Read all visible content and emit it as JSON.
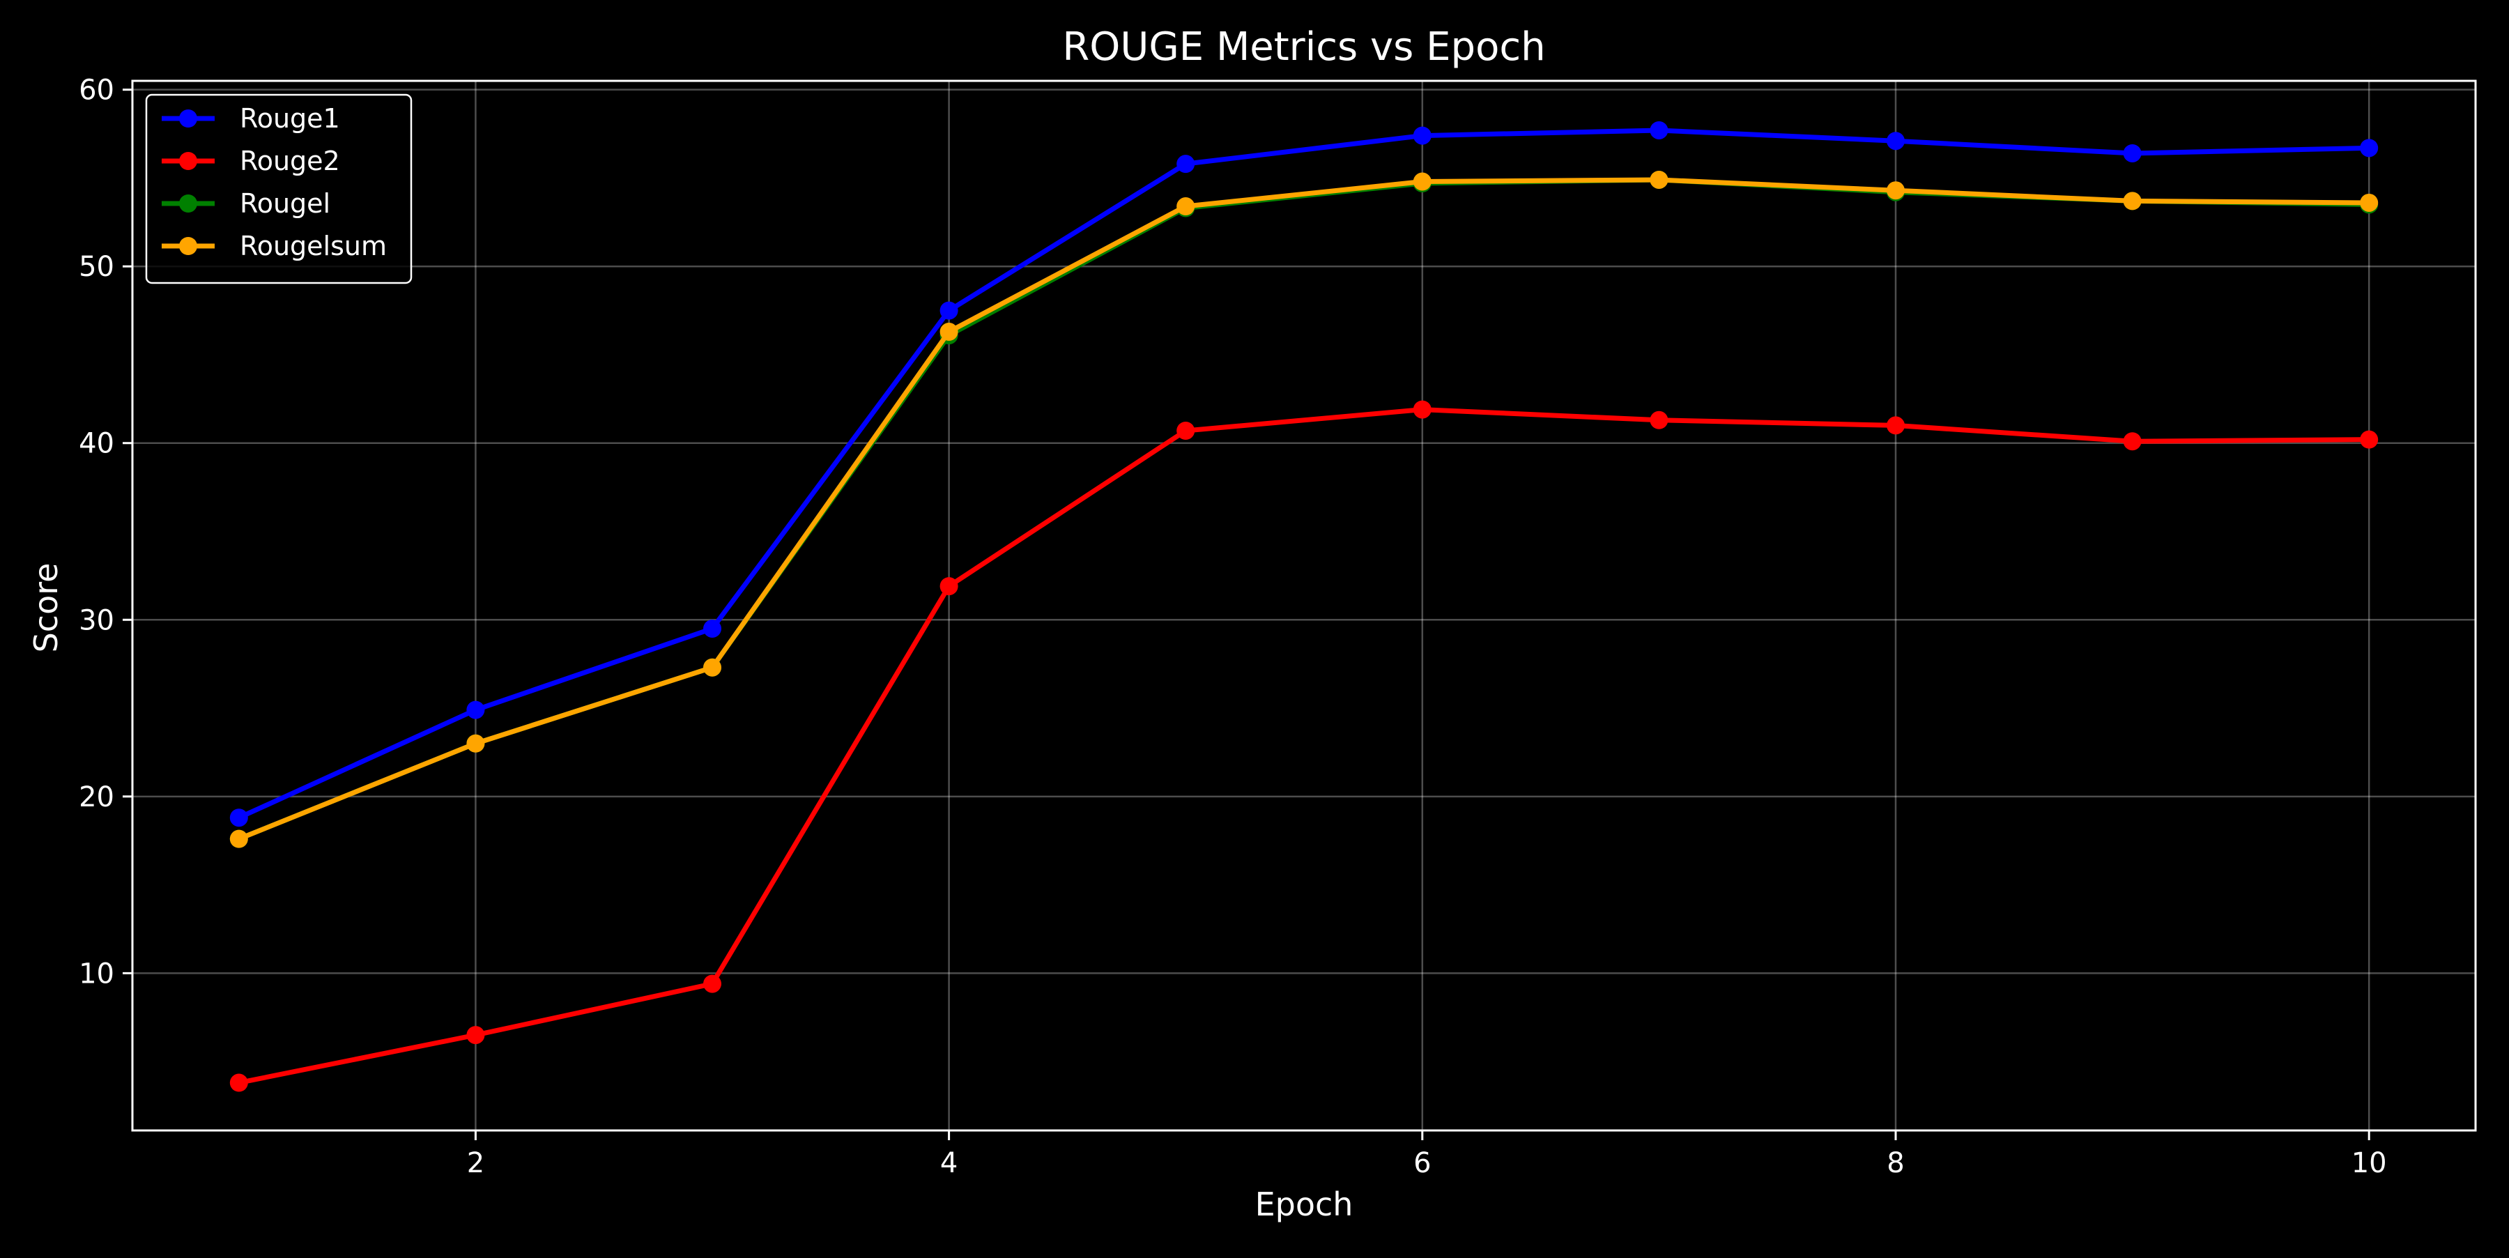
{
  "chart_data": {
    "type": "line",
    "title": "ROUGE Metrics vs Epoch",
    "xlabel": "Epoch",
    "ylabel": "Score",
    "x": [
      1,
      2,
      3,
      4,
      5,
      6,
      7,
      8,
      9,
      10
    ],
    "xlim": [
      0.55,
      10.45
    ],
    "ylim": [
      1.1,
      60.5
    ],
    "xticks": [
      2,
      4,
      6,
      8,
      10
    ],
    "yticks": [
      10,
      20,
      30,
      40,
      50,
      60
    ],
    "grid": true,
    "legend_position": "upper-left",
    "series": [
      {
        "name": "Rouge1",
        "color": "#0000ff",
        "values": [
          18.8,
          24.9,
          29.5,
          47.5,
          55.8,
          57.4,
          57.7,
          57.1,
          56.4,
          56.7
        ]
      },
      {
        "name": "Rouge2",
        "color": "#ff0000",
        "values": [
          3.8,
          6.5,
          9.4,
          31.9,
          40.7,
          41.9,
          41.3,
          41.0,
          40.1,
          40.2
        ]
      },
      {
        "name": "Rougel",
        "color": "#008000",
        "values": [
          17.6,
          23.0,
          27.3,
          46.1,
          53.3,
          54.7,
          54.9,
          54.2,
          53.7,
          53.5
        ]
      },
      {
        "name": "Rougelsum",
        "color": "#ffa500",
        "values": [
          17.6,
          23.0,
          27.3,
          46.3,
          53.4,
          54.8,
          54.9,
          54.3,
          53.7,
          53.6
        ]
      }
    ]
  }
}
